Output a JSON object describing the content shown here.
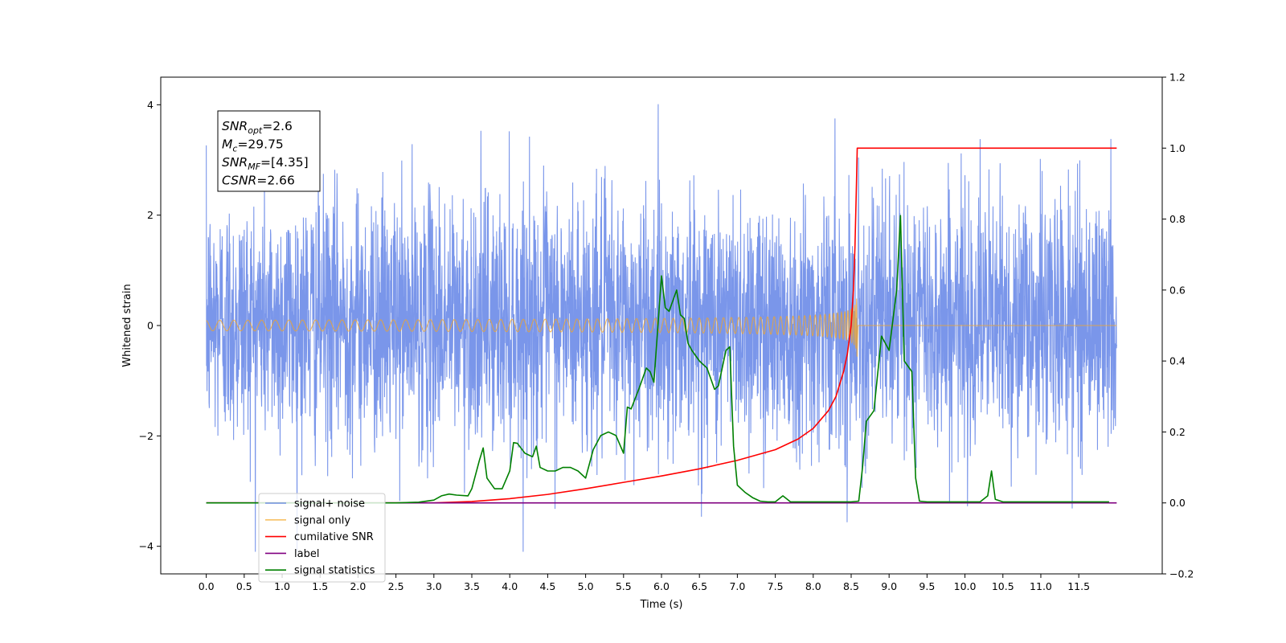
{
  "chart_data": {
    "type": "line",
    "xlabel": "Time (s)",
    "ylabel": "Whitened strain",
    "y2label": "",
    "xlim": [
      -0.6,
      12.6
    ],
    "ylim": [
      -4.5,
      4.5
    ],
    "y2lim": [
      -0.2,
      1.2
    ],
    "xticks": [
      0.0,
      0.5,
      1.0,
      1.5,
      2.0,
      2.5,
      3.0,
      3.5,
      4.0,
      4.5,
      5.0,
      5.5,
      6.0,
      6.5,
      7.0,
      7.5,
      8.0,
      8.5,
      9.0,
      9.5,
      10.0,
      10.5,
      11.0,
      11.5
    ],
    "xtick_labels": [
      "0.0",
      "0.5",
      "1.0",
      "1.5",
      "2.0",
      "2.5",
      "3.0",
      "3.5",
      "4.0",
      "4.5",
      "5.0",
      "5.5",
      "6.0",
      "6.5",
      "7.0",
      "7.5",
      "8.0",
      "8.5",
      "9.0",
      "9.5",
      "10.0",
      "10.5",
      "11.0",
      "11.5"
    ],
    "yticks": [
      -4,
      -2,
      0,
      2,
      4
    ],
    "ytick_labels": [
      "−4",
      "−2",
      "0",
      "2",
      "4"
    ],
    "y2ticks": [
      -0.2,
      0.0,
      0.2,
      0.4,
      0.6,
      0.8,
      1.0,
      1.2
    ],
    "y2tick_labels": [
      "−0.2",
      "0.0",
      "0.2",
      "0.4",
      "0.6",
      "0.8",
      "1.0",
      "1.2"
    ],
    "grid": false,
    "legend_position": "lower-left",
    "annotation": {
      "lines": [
        {
          "base": "SNR",
          "sub": "opt",
          "rest": "=2.6"
        },
        {
          "base": "M",
          "sub": "c",
          "rest": "=29.75"
        },
        {
          "base": "SNR",
          "sub": "MF",
          "rest": "=[4.35]"
        },
        {
          "base": "CSNR",
          "sub": "",
          "rest": "=2.66"
        }
      ]
    },
    "series": [
      {
        "name": "signal+ noise",
        "axis": "left",
        "color": "#4169e1",
        "style": "noise",
        "x_range": [
          0.0,
          12.0
        ],
        "typical_range": [
          -2.3,
          2.5
        ],
        "peak_max": 4.1,
        "peak_min": -4.1
      },
      {
        "name": "signal only",
        "axis": "left",
        "color": "#f5a623",
        "style": "chirp",
        "x_range": [
          0.0,
          8.58
        ],
        "merger_time": 8.58,
        "peak_amplitude": 0.65,
        "x_end": 12.0
      },
      {
        "name": "cumilative SNR",
        "axis": "right",
        "color": "#ff0000",
        "x": [
          0.0,
          3.0,
          3.5,
          4.0,
          4.5,
          5.0,
          5.5,
          6.0,
          6.5,
          7.0,
          7.5,
          7.8,
          8.0,
          8.2,
          8.3,
          8.4,
          8.45,
          8.5,
          8.53,
          8.55,
          8.57,
          8.58,
          12.0
        ],
        "values": [
          0.0,
          0.0,
          0.004,
          0.012,
          0.024,
          0.04,
          0.058,
          0.076,
          0.096,
          0.12,
          0.15,
          0.18,
          0.21,
          0.26,
          0.3,
          0.37,
          0.42,
          0.5,
          0.6,
          0.72,
          0.9,
          1.0,
          1.0
        ]
      },
      {
        "name": "label",
        "axis": "right",
        "color": "#800080",
        "x": [
          0.0,
          12.0
        ],
        "values": [
          0.0,
          0.0
        ]
      },
      {
        "name": "signal statistics",
        "axis": "right",
        "color": "#008000",
        "x": [
          0.0,
          2.0,
          2.5,
          2.8,
          3.0,
          3.1,
          3.2,
          3.3,
          3.45,
          3.5,
          3.6,
          3.65,
          3.7,
          3.8,
          3.9,
          4.0,
          4.05,
          4.1,
          4.2,
          4.3,
          4.35,
          4.4,
          4.5,
          4.6,
          4.7,
          4.8,
          4.9,
          5.0,
          5.1,
          5.2,
          5.3,
          5.4,
          5.5,
          5.55,
          5.6,
          5.7,
          5.8,
          5.85,
          5.9,
          6.0,
          6.05,
          6.1,
          6.2,
          6.25,
          6.3,
          6.35,
          6.4,
          6.5,
          6.55,
          6.6,
          6.7,
          6.75,
          6.85,
          6.9,
          6.95,
          7.0,
          7.05,
          7.1,
          7.2,
          7.3,
          7.4,
          7.5,
          7.6,
          7.7,
          7.8,
          8.0,
          8.5,
          8.6,
          8.65,
          8.7,
          8.8,
          8.9,
          9.0,
          9.1,
          9.15,
          9.2,
          9.3,
          9.35,
          9.4,
          9.5,
          10.0,
          10.2,
          10.3,
          10.35,
          10.4,
          10.5,
          11.0,
          11.5,
          11.9
        ],
        "values": [
          0.0,
          0.0,
          0.0,
          0.002,
          0.008,
          0.02,
          0.025,
          0.022,
          0.02,
          0.04,
          0.12,
          0.155,
          0.07,
          0.04,
          0.04,
          0.09,
          0.17,
          0.168,
          0.14,
          0.13,
          0.16,
          0.1,
          0.09,
          0.09,
          0.1,
          0.1,
          0.09,
          0.07,
          0.15,
          0.19,
          0.2,
          0.19,
          0.14,
          0.27,
          0.265,
          0.32,
          0.38,
          0.37,
          0.34,
          0.64,
          0.55,
          0.54,
          0.6,
          0.53,
          0.52,
          0.45,
          0.43,
          0.4,
          0.39,
          0.38,
          0.32,
          0.33,
          0.43,
          0.44,
          0.16,
          0.05,
          0.04,
          0.03,
          0.015,
          0.005,
          0.003,
          0.003,
          0.02,
          0.003,
          0.003,
          0.003,
          0.003,
          0.005,
          0.1,
          0.23,
          0.26,
          0.47,
          0.43,
          0.6,
          0.81,
          0.4,
          0.37,
          0.07,
          0.005,
          0.003,
          0.003,
          0.003,
          0.02,
          0.09,
          0.01,
          0.003,
          0.003,
          0.003,
          0.003
        ]
      }
    ]
  }
}
